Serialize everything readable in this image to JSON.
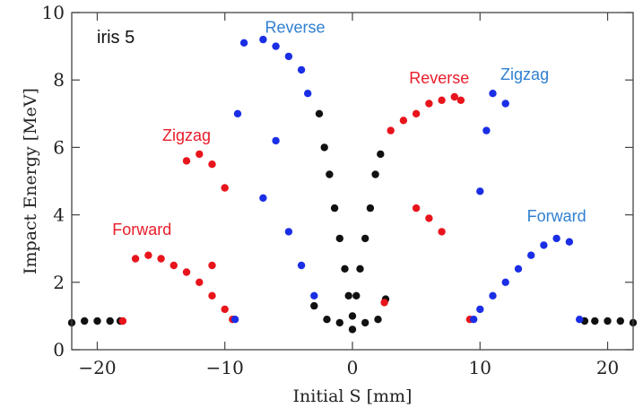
{
  "chart_data": {
    "type": "scatter",
    "panel_label": "iris 5",
    "xlabel": "Initial S [mm]",
    "ylabel": "Impact Energy [MeV]",
    "xlim": [
      -22,
      22
    ],
    "ylim": [
      0,
      10
    ],
    "x_ticks": [
      -20,
      -10,
      0,
      10,
      20
    ],
    "x_tick_labels": [
      "−20",
      "−10",
      "0",
      "10",
      "20"
    ],
    "y_ticks": [
      0,
      2,
      4,
      6,
      8,
      10
    ],
    "y_tick_labels": [
      "0",
      "2",
      "4",
      "6",
      "8",
      "10"
    ],
    "grid": false,
    "legend": "none",
    "colors": {
      "forward": "#e8141c",
      "reverse": "#1a2ee6",
      "edge": "#111111"
    },
    "annotations": [
      {
        "text": "Reverse",
        "x": -4.5,
        "y": 9.4,
        "color": "#2f7fd0"
      },
      {
        "text": "Zigzag",
        "x": -13,
        "y": 6.2,
        "color": "#e81c2a"
      },
      {
        "text": "Forward",
        "x": -16.5,
        "y": 3.4,
        "color": "#e81c2a"
      },
      {
        "text": "Reverse",
        "x": 6.8,
        "y": 7.9,
        "color": "#e81c2a"
      },
      {
        "text": "Zigzag",
        "x": 13.5,
        "y": 8.0,
        "color": "#2f7fd0"
      },
      {
        "text": "Forward",
        "x": 16,
        "y": 3.8,
        "color": "#2f7fd0"
      }
    ],
    "series": [
      {
        "color": "#111111",
        "points": [
          [
            -22,
            0.8
          ],
          [
            -21,
            0.85
          ],
          [
            -20,
            0.85
          ],
          [
            -19,
            0.85
          ],
          [
            -18.2,
            0.85
          ],
          [
            18.2,
            0.85
          ],
          [
            19,
            0.85
          ],
          [
            20,
            0.85
          ],
          [
            21,
            0.85
          ],
          [
            22,
            0.8
          ],
          [
            -2.6,
            7.0
          ],
          [
            -2.2,
            6.0
          ],
          [
            -1.8,
            5.2
          ],
          [
            -1.4,
            4.2
          ],
          [
            -1.0,
            3.3
          ],
          [
            -0.6,
            2.4
          ],
          [
            -0.3,
            1.6
          ],
          [
            0,
            1.0
          ],
          [
            0.3,
            1.6
          ],
          [
            0.6,
            2.4
          ],
          [
            1.0,
            3.3
          ],
          [
            1.4,
            4.2
          ],
          [
            1.8,
            5.2
          ],
          [
            2.2,
            5.8
          ],
          [
            2.6,
            1.5
          ],
          [
            -3,
            1.3
          ],
          [
            -2,
            0.9
          ],
          [
            -1,
            0.8
          ],
          [
            0,
            0.6
          ],
          [
            1,
            0.8
          ],
          [
            2,
            0.9
          ]
        ]
      },
      {
        "color": "#e8141c",
        "points": [
          [
            -18,
            0.85
          ],
          [
            -17,
            2.7
          ],
          [
            -16,
            2.8
          ],
          [
            -15,
            2.7
          ],
          [
            -14,
            2.5
          ],
          [
            -13,
            2.3
          ],
          [
            -12,
            2.0
          ],
          [
            -11,
            1.6
          ],
          [
            -10,
            1.2
          ],
          [
            -9.4,
            0.9
          ],
          [
            -13,
            5.6
          ],
          [
            -12,
            5.8
          ],
          [
            -11,
            5.5
          ],
          [
            -10,
            4.8
          ],
          [
            -11,
            2.5
          ],
          [
            2.5,
            1.4
          ],
          [
            3,
            6.5
          ],
          [
            4,
            6.8
          ],
          [
            5,
            7.0
          ],
          [
            6,
            7.3
          ],
          [
            7,
            7.4
          ],
          [
            8,
            7.5
          ],
          [
            8.5,
            7.4
          ],
          [
            9.2,
            0.9
          ],
          [
            5,
            4.2
          ],
          [
            6,
            3.9
          ],
          [
            7,
            3.5
          ]
        ]
      },
      {
        "color": "#1a2ee6",
        "points": [
          [
            -9.2,
            0.9
          ],
          [
            -9,
            7.0
          ],
          [
            -8.5,
            9.1
          ],
          [
            -7,
            9.2
          ],
          [
            -6,
            9.0
          ],
          [
            -5,
            8.7
          ],
          [
            -4,
            8.3
          ],
          [
            -3.5,
            7.6
          ],
          [
            -6,
            6.2
          ],
          [
            -7,
            4.5
          ],
          [
            -5,
            3.5
          ],
          [
            -4,
            2.5
          ],
          [
            -3,
            1.6
          ],
          [
            9.5,
            0.9
          ],
          [
            10,
            1.2
          ],
          [
            11,
            1.6
          ],
          [
            12,
            2.0
          ],
          [
            13,
            2.4
          ],
          [
            14,
            2.8
          ],
          [
            15,
            3.1
          ],
          [
            16,
            3.3
          ],
          [
            17,
            3.2
          ],
          [
            17.8,
            0.9
          ],
          [
            11,
            7.6
          ],
          [
            12,
            7.3
          ],
          [
            10.5,
            6.5
          ],
          [
            10,
            4.7
          ]
        ]
      }
    ]
  }
}
